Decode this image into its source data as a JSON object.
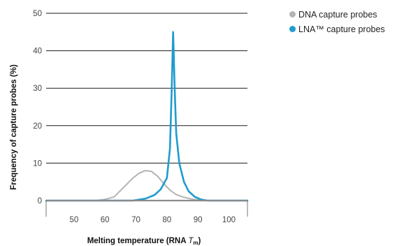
{
  "chart_data": {
    "type": "line",
    "xlabel": "Melting temperature (RNA ",
    "xlabel_italic": "T",
    "xlabel_sub": "m",
    "xlabel_end": ")",
    "ylabel": "Frequency of capture probes (%)",
    "xlim": [
      41,
      106
    ],
    "ylim": [
      0,
      50
    ],
    "x_ticks": [
      50,
      60,
      70,
      80,
      90,
      100
    ],
    "y_ticks": [
      0,
      10,
      20,
      30,
      40,
      50
    ],
    "grid": "horizontal",
    "legend_position": "top-right",
    "series": [
      {
        "name": "DNA capture probes",
        "color": "#b3b3b3",
        "x": [
          41,
          57,
          60,
          63,
          66,
          69,
          71,
          73,
          75,
          77,
          79,
          81,
          83,
          85,
          88,
          91,
          93
        ],
        "y": [
          0,
          0,
          0.3,
          1,
          3.5,
          6,
          7.3,
          8,
          7.8,
          6.5,
          4.5,
          2.8,
          1.6,
          1,
          0.4,
          0.1,
          0
        ]
      },
      {
        "name": "LNA™ capture probes",
        "color": "#1f9bce",
        "x": [
          41,
          69,
          73,
          76,
          78,
          80,
          81,
          81.5,
          82,
          82.5,
          83,
          84,
          85.5,
          87,
          89,
          91,
          93,
          106
        ],
        "y": [
          0,
          0,
          0.5,
          1.5,
          3,
          6,
          14,
          28,
          45,
          30,
          18,
          10,
          5,
          2.5,
          1,
          0.3,
          0,
          0
        ]
      }
    ]
  }
}
